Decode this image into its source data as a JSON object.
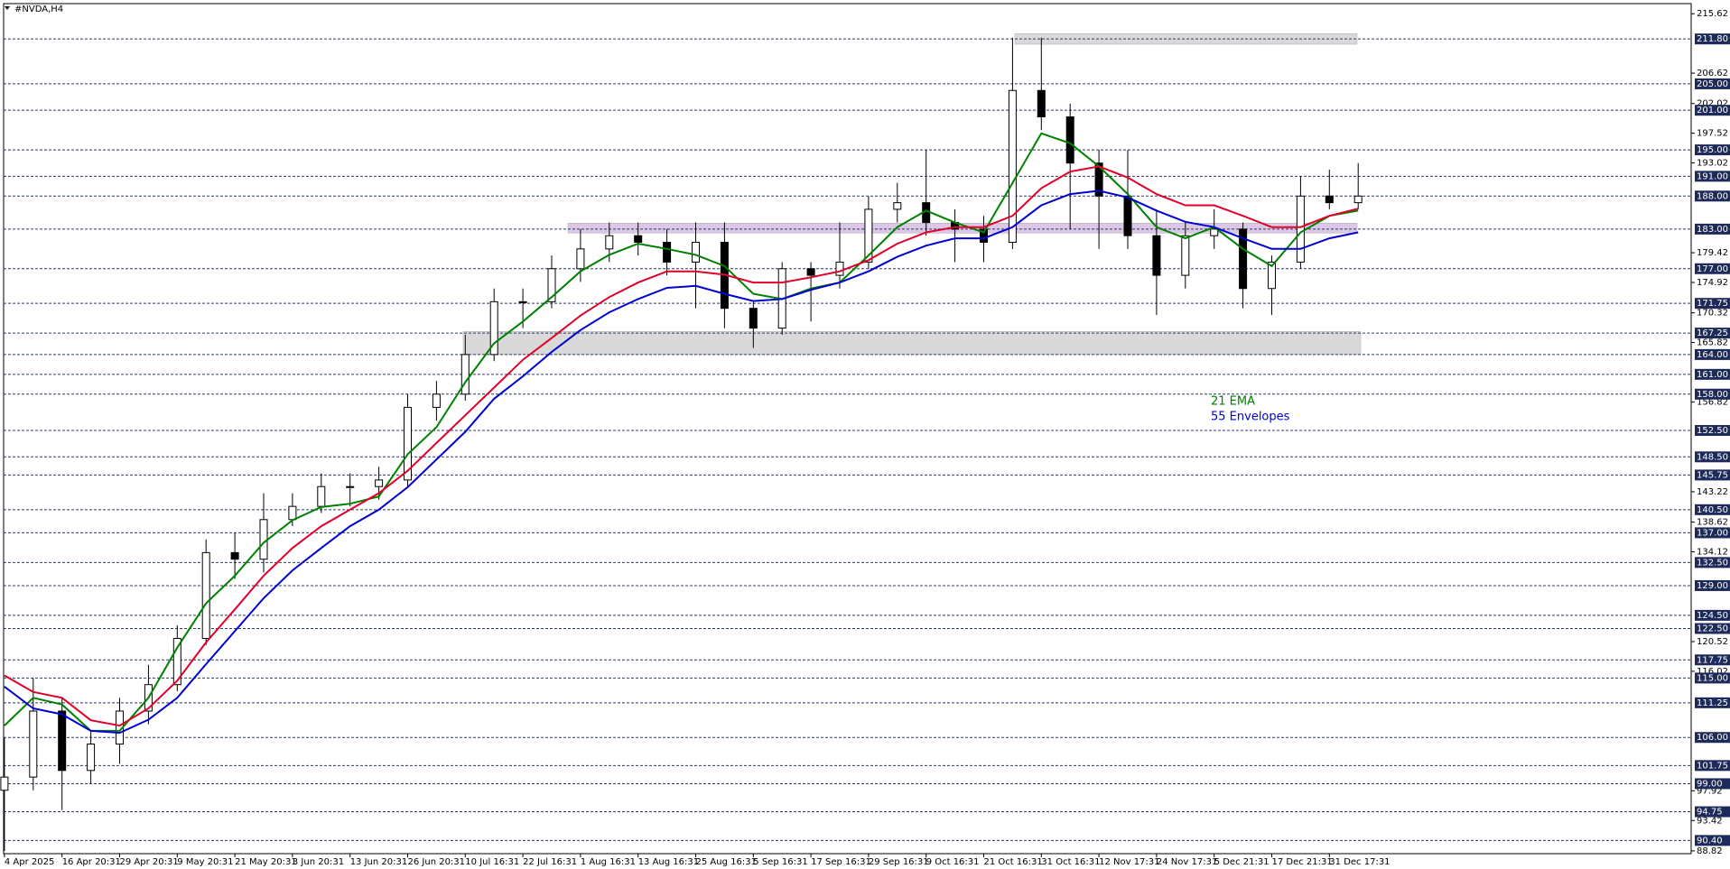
{
  "chart_data": {
    "type": "candlestick",
    "title": "#NVDA,H4",
    "categories": [
      "4 Apr 2025",
      null,
      "16 Apr 20:31",
      null,
      "29 Apr 20:31",
      null,
      "9 May 20:31",
      null,
      "21 May 20:31",
      null,
      "3 Jun 20:31",
      null,
      "13 Jun 20:31",
      null,
      "26 Jun 20:31",
      null,
      "10 Jul 16:31",
      null,
      "22 Jul 16:31",
      null,
      "1 Aug 16:31",
      null,
      "13 Aug 16:31",
      null,
      "25 Aug 16:31",
      null,
      "5 Sep 16:31",
      null,
      "17 Sep 16:31",
      null,
      "29 Sep 16:31",
      null,
      "9 Oct 16:31",
      null,
      "21 Oct 16:31",
      null,
      "31 Oct 16:31",
      null,
      "12 Nov 17:31",
      null,
      "24 Nov 17:31",
      null,
      "5 Dec 21:31",
      null,
      "17 Dec 21:31",
      null,
      "31 Dec 17:31",
      null
    ],
    "open": [
      98,
      100,
      110,
      101,
      105,
      110,
      114,
      121,
      134,
      133,
      139,
      141,
      144,
      144,
      145,
      156,
      158,
      164,
      172,
      172,
      177,
      180,
      182,
      181,
      178,
      181,
      171,
      168,
      177,
      176,
      178,
      186,
      187,
      184,
      183,
      181,
      204,
      200,
      193,
      188,
      182,
      176,
      182,
      183,
      174,
      178,
      188,
      187
    ],
    "high": [
      106,
      115,
      112,
      107,
      112,
      117,
      123,
      136,
      137,
      143,
      143,
      146,
      146,
      147,
      158,
      160,
      167,
      174,
      174,
      179,
      183,
      184,
      184,
      183,
      184,
      184,
      172,
      178,
      178,
      184,
      188,
      190,
      195,
      186,
      185,
      212,
      212,
      202,
      195,
      195,
      186,
      184,
      186,
      184,
      179,
      191,
      192,
      193
    ],
    "low": [
      88.8,
      98,
      95,
      99,
      102,
      108,
      113,
      120,
      130,
      131,
      138,
      140,
      141,
      142,
      144,
      154,
      157,
      163,
      168,
      171,
      175,
      178,
      179,
      176,
      171,
      168,
      165,
      167,
      169,
      174,
      177,
      184,
      182,
      178,
      178,
      180,
      198,
      183,
      180,
      180,
      170,
      174,
      180,
      171,
      170,
      177,
      186,
      186
    ],
    "close": [
      100,
      110,
      101,
      105,
      110,
      114,
      121,
      134,
      133,
      139,
      141,
      144,
      144,
      145,
      156,
      158,
      164,
      172,
      172,
      177,
      180,
      182,
      181,
      178,
      181,
      171,
      168,
      177,
      176,
      178,
      186,
      187,
      184,
      183,
      181,
      204,
      200,
      193,
      188,
      182,
      176,
      182,
      183,
      174,
      178,
      188,
      187,
      188
    ],
    "series": [
      {
        "name": "21 EMA",
        "color": "#008000",
        "values": [
          107.8,
          112,
          111,
          107,
          107,
          112,
          119.6,
          126.3,
          130.5,
          135.5,
          138.9,
          140.9,
          141.4,
          142.5,
          148.9,
          153,
          159.8,
          165.7,
          169,
          172.7,
          176.6,
          179.1,
          180.8,
          180,
          179.1,
          177.4,
          173.2,
          172.4,
          174,
          174.9,
          179,
          183.3,
          185.8,
          184,
          182.5,
          190,
          197.5,
          196,
          192.5,
          188.3,
          183.3,
          181.6,
          183.3,
          180,
          177.4,
          182.5,
          185,
          185.8
        ]
      },
      {
        "color": "#e0002a",
        "values": [
          115.4,
          112.9,
          112,
          108.6,
          107.8,
          110.4,
          114.6,
          120.4,
          125.4,
          130.5,
          134.7,
          138,
          140.5,
          143,
          146.4,
          150.6,
          154.8,
          159,
          163.2,
          166.5,
          169.9,
          172.7,
          174.9,
          176.6,
          176.6,
          176.1,
          174.9,
          174.9,
          175.7,
          176.6,
          178.3,
          180.8,
          182.5,
          183.3,
          183.3,
          185,
          189.2,
          191.7,
          192.5,
          190.8,
          188.3,
          186.6,
          186.6,
          185,
          183.3,
          183.3,
          185,
          186.1
        ]
      },
      {
        "name": "55 Envelopes",
        "color": "#0000d0",
        "values": [
          113.7,
          110.4,
          109.5,
          107,
          106.7,
          108.7,
          112,
          117.1,
          122.1,
          127.1,
          131.3,
          134.7,
          138,
          140.5,
          143.9,
          148.1,
          152.3,
          157.3,
          160.7,
          164.4,
          167.7,
          170.4,
          172.4,
          174.1,
          174.4,
          173.2,
          172.1,
          172.4,
          173.8,
          174.9,
          176.6,
          178.8,
          180.5,
          181.6,
          181.6,
          183.3,
          186.6,
          188.3,
          188.8,
          187.8,
          185.8,
          184.1,
          183.3,
          181.6,
          180,
          180,
          181.6,
          182.5
        ]
      }
    ],
    "zones": [
      {
        "low": 211,
        "high": 212.6,
        "color": "#d9d9d9"
      },
      {
        "low": 182.4,
        "high": 183.9,
        "color": "#dcc8e6"
      },
      {
        "low": 164,
        "high": 167.5,
        "color": "#d9d9d9"
      }
    ],
    "ylim": [
      88.4,
      217.7
    ],
    "yticks": [
      215.62,
      206.62,
      202.02,
      197.52,
      193.02,
      179.42,
      174.92,
      170.32,
      165.82,
      156.82,
      143.22,
      138.62,
      134.12,
      120.52,
      116.02,
      97.92,
      93.42,
      88.82
    ],
    "levels": [
      {
        "value": 211.8,
        "label": "211.80"
      },
      {
        "value": 205,
        "label": "205.00"
      },
      {
        "value": 201,
        "label": "201.00"
      },
      {
        "value": 195,
        "label": "195.00"
      },
      {
        "value": 191,
        "label": "191.00"
      },
      {
        "value": 188,
        "label": "188.00"
      },
      {
        "value": 183,
        "label": "183.00"
      },
      {
        "value": 177,
        "label": "177.00"
      },
      {
        "value": 171.75,
        "label": "171.75"
      },
      {
        "value": 167.25,
        "label": "167.25"
      },
      {
        "value": 164,
        "label": "164.00"
      },
      {
        "value": 161,
        "label": "161.00"
      },
      {
        "value": 158,
        "label": "158.00"
      },
      {
        "value": 152.5,
        "label": "152.50"
      },
      {
        "value": 148.5,
        "label": "148.50"
      },
      {
        "value": 145.75,
        "label": "145.75"
      },
      {
        "value": 140.5,
        "label": "140.50"
      },
      {
        "value": 137,
        "label": "137.00"
      },
      {
        "value": 132.5,
        "label": "132.50"
      },
      {
        "value": 129,
        "label": "129.00"
      },
      {
        "value": 124.5,
        "label": "124.50"
      },
      {
        "value": 122.5,
        "label": "122.50"
      },
      {
        "value": 117.75,
        "label": "117.75"
      },
      {
        "value": 115,
        "label": "115.00"
      },
      {
        "value": 111.25,
        "label": "111.25"
      },
      {
        "value": 106,
        "label": "106.00"
      },
      {
        "value": 101.75,
        "label": "101.75"
      },
      {
        "value": 99,
        "label": "99.00"
      },
      {
        "value": 94.75,
        "label": "94.75"
      },
      {
        "value": 90.4,
        "label": "90.40"
      }
    ],
    "level_color": "#1e2a5a"
  }
}
